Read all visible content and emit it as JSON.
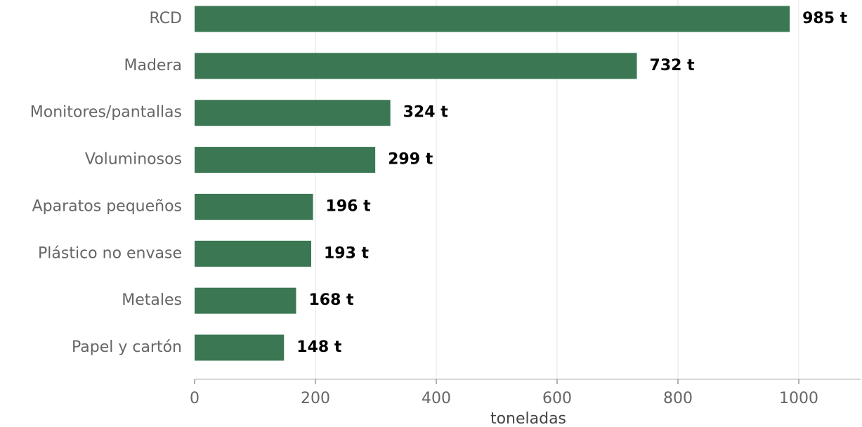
{
  "chart_data": {
    "type": "bar",
    "orientation": "horizontal",
    "categories": [
      "RCD",
      "Madera",
      "Monitores/pantallas",
      "Voluminosos",
      "Aparatos pequeños",
      "Plástico no envase",
      "Metales",
      "Papel y cartón"
    ],
    "values": [
      985,
      732,
      324,
      299,
      196,
      193,
      168,
      148
    ],
    "value_labels": [
      "985 t",
      "732 t",
      "324 t",
      "299 t",
      "196 t",
      "193 t",
      "168 t",
      "148 t"
    ],
    "xlabel": "toneladas",
    "ylabel": "",
    "xlim": [
      0,
      1100
    ],
    "xticks": [
      0,
      200,
      400,
      600,
      800,
      1000
    ],
    "xtick_labels": [
      "0",
      "200",
      "400",
      "600",
      "800",
      "1000"
    ],
    "grid": "vertical",
    "bar_color": "#3a7752"
  }
}
